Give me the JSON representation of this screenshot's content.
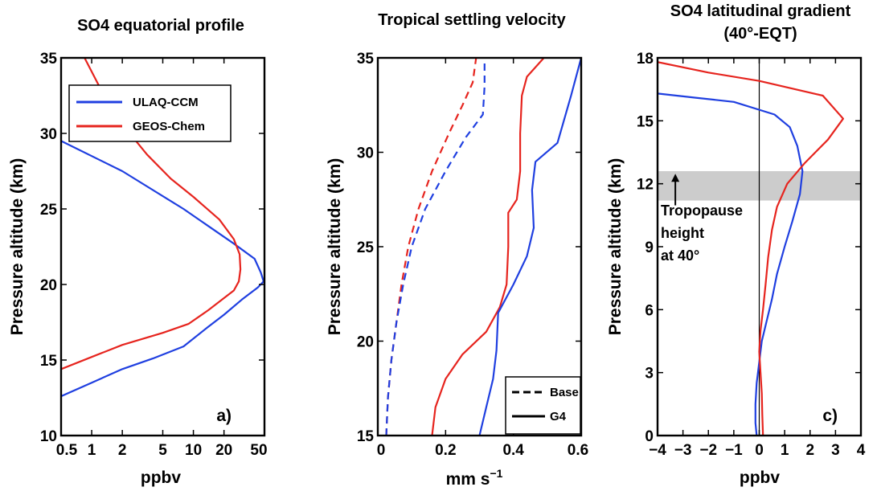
{
  "chart_data": [
    {
      "type": "line",
      "panel_label": "a)",
      "title": "SO4 equatorial profile",
      "xlabel": "ppbv",
      "ylabel": "Pressure altitude (km)",
      "xscale": "log",
      "xlim": [
        0.5,
        50
      ],
      "ylim": [
        10,
        35
      ],
      "xticks": [
        0.5,
        1,
        2,
        5,
        10,
        20,
        50
      ],
      "xtick_labels": [
        "0.5",
        "1",
        "2",
        "5",
        "10",
        "20",
        "50"
      ],
      "yticks": [
        10,
        15,
        20,
        25,
        30,
        35
      ],
      "ytick_labels": [
        "10",
        "15",
        "20",
        "25",
        "30",
        "35"
      ],
      "legend_position": "top-left",
      "series": [
        {
          "name": "ULAQ-CCM",
          "color": "#1f3fe0",
          "style": "solid",
          "points": [
            [
              0.5,
              12.6
            ],
            [
              1,
              13.5
            ],
            [
              2,
              14.4
            ],
            [
              4,
              15.1
            ],
            [
              8,
              15.9
            ],
            [
              14,
              17.2
            ],
            [
              20,
              18.0
            ],
            [
              30,
              19.0
            ],
            [
              43,
              19.8
            ],
            [
              49,
              20.2
            ],
            [
              46,
              20.8
            ],
            [
              40,
              21.7
            ],
            [
              25,
              22.7
            ],
            [
              8,
              25.0
            ],
            [
              2,
              27.5
            ],
            [
              0.5,
              29.5
            ]
          ]
        },
        {
          "name": "GEOS-Chem",
          "color": "#e6241e",
          "style": "solid",
          "points": [
            [
              0.5,
              14.4
            ],
            [
              1,
              15.2
            ],
            [
              2,
              16.0
            ],
            [
              5,
              16.8
            ],
            [
              9,
              17.4
            ],
            [
              14,
              18.3
            ],
            [
              20,
              19.1
            ],
            [
              25,
              19.6
            ],
            [
              28,
              20.2
            ],
            [
              29,
              21.0
            ],
            [
              28.5,
              22.0
            ],
            [
              25,
              23.0
            ],
            [
              18,
              24.3
            ],
            [
              10,
              25.8
            ],
            [
              6,
              27.0
            ],
            [
              3.5,
              28.6
            ],
            [
              2,
              30.6
            ],
            [
              1.3,
              32.6
            ],
            [
              0.85,
              35.0
            ]
          ]
        }
      ]
    },
    {
      "type": "line",
      "title": "Tropical settling velocity",
      "xlabel": "mm s",
      "xlabel_sup": "−1",
      "ylabel": "Pressure altitude (km)",
      "xlim": [
        0,
        0.6
      ],
      "ylim": [
        15,
        35
      ],
      "xticks": [
        0,
        0.2,
        0.4,
        0.6
      ],
      "xtick_labels": [
        "0",
        "0.2",
        "0.4",
        "0.6"
      ],
      "yticks": [
        15,
        20,
        25,
        30,
        35
      ],
      "ytick_labels": [
        "15",
        "20",
        "25",
        "30",
        "35"
      ],
      "legend_position": "bottom-right",
      "legend": [
        {
          "label": "Base",
          "style": "dashed"
        },
        {
          "label": "G4",
          "style": "solid"
        }
      ],
      "series": [
        {
          "color": "#e6241e",
          "style": "dashed",
          "points": [
            [
              0.025,
              15.0
            ],
            [
              0.03,
              17.0
            ],
            [
              0.04,
              19.0
            ],
            [
              0.055,
              21.0
            ],
            [
              0.07,
              23.0
            ],
            [
              0.09,
              25.0
            ],
            [
              0.12,
              27.0
            ],
            [
              0.16,
              29.0
            ],
            [
              0.21,
              31.0
            ],
            [
              0.25,
              32.5
            ],
            [
              0.28,
              33.7
            ],
            [
              0.29,
              35.0
            ]
          ]
        },
        {
          "color": "#1f3fe0",
          "style": "dashed",
          "points": [
            [
              0.025,
              15.0
            ],
            [
              0.03,
              17.0
            ],
            [
              0.04,
              19.0
            ],
            [
              0.055,
              21.0
            ],
            [
              0.075,
              23.0
            ],
            [
              0.1,
              25.0
            ],
            [
              0.14,
              27.0
            ],
            [
              0.2,
              29.0
            ],
            [
              0.26,
              30.8
            ],
            [
              0.31,
              32.0
            ],
            [
              0.315,
              33.5
            ],
            [
              0.315,
              35.0
            ]
          ]
        },
        {
          "color": "#e6241e",
          "style": "solid",
          "points": [
            [
              0.16,
              15.0
            ],
            [
              0.17,
              16.5
            ],
            [
              0.2,
              18.0
            ],
            [
              0.25,
              19.3
            ],
            [
              0.32,
              20.5
            ],
            [
              0.36,
              21.8
            ],
            [
              0.38,
              23.0
            ],
            [
              0.385,
              25.0
            ],
            [
              0.385,
              26.8
            ],
            [
              0.41,
              27.5
            ],
            [
              0.42,
              29.0
            ],
            [
              0.42,
              31.0
            ],
            [
              0.425,
              33.0
            ],
            [
              0.44,
              34.0
            ],
            [
              0.49,
              35.0
            ]
          ]
        },
        {
          "color": "#1f3fe0",
          "style": "solid",
          "points": [
            [
              0.3,
              15.0
            ],
            [
              0.32,
              16.5
            ],
            [
              0.34,
              18.0
            ],
            [
              0.35,
              19.5
            ],
            [
              0.355,
              21.5
            ],
            [
              0.4,
              23.0
            ],
            [
              0.44,
              24.5
            ],
            [
              0.46,
              26.0
            ],
            [
              0.455,
              28.0
            ],
            [
              0.465,
              29.5
            ],
            [
              0.53,
              30.5
            ],
            [
              0.57,
              33.0
            ],
            [
              0.6,
              35.0
            ]
          ]
        }
      ]
    },
    {
      "type": "line",
      "panel_label": "c)",
      "title": "SO4 latitudinal gradient",
      "subtitle": "(40°-EQT)",
      "xlabel": "ppbv",
      "ylabel": "Pressure altitude (km)",
      "xlim": [
        -4,
        4
      ],
      "ylim": [
        0,
        18
      ],
      "xticks": [
        -4,
        -3,
        -2,
        -1,
        0,
        1,
        2,
        3,
        4
      ],
      "xtick_labels": [
        "−4",
        "−3",
        "−2",
        "−1",
        "0",
        "1",
        "2",
        "3",
        "4"
      ],
      "yticks": [
        0,
        3,
        6,
        9,
        12,
        15,
        18
      ],
      "ytick_labels": [
        "0",
        "3",
        "6",
        "9",
        "12",
        "15",
        "18"
      ],
      "zero_line": true,
      "shaded_band": {
        "y": [
          11.2,
          12.6
        ],
        "color": "#cccccc"
      },
      "annotation": {
        "lines": [
          "Tropopause",
          "height",
          "at 40°"
        ],
        "arrow_from": [
          -3.3,
          11.2
        ],
        "arrow_to": [
          -3.3,
          12.4
        ]
      },
      "series": [
        {
          "color": "#1f3fe0",
          "style": "solid",
          "points": [
            [
              -0.1,
              0.0
            ],
            [
              -0.15,
              0.6
            ],
            [
              -0.15,
              1.5
            ],
            [
              -0.1,
              2.5
            ],
            [
              0.0,
              3.5
            ],
            [
              0.1,
              4.5
            ],
            [
              0.3,
              5.5
            ],
            [
              0.5,
              6.5
            ],
            [
              0.7,
              7.7
            ],
            [
              1.0,
              9.0
            ],
            [
              1.3,
              10.2
            ],
            [
              1.6,
              11.5
            ],
            [
              1.7,
              12.6
            ],
            [
              1.5,
              13.8
            ],
            [
              1.2,
              14.7
            ],
            [
              0.6,
              15.3
            ],
            [
              -1.0,
              15.9
            ],
            [
              -2.5,
              16.1
            ],
            [
              -4.0,
              16.3
            ]
          ]
        },
        {
          "color": "#e6241e",
          "style": "solid",
          "points": [
            [
              0.15,
              0.0
            ],
            [
              0.12,
              1.0
            ],
            [
              0.1,
              2.0
            ],
            [
              0.05,
              3.0
            ],
            [
              0.0,
              4.0
            ],
            [
              0.05,
              5.0
            ],
            [
              0.15,
              6.0
            ],
            [
              0.25,
              7.2
            ],
            [
              0.35,
              8.5
            ],
            [
              0.5,
              9.8
            ],
            [
              0.7,
              10.9
            ],
            [
              1.1,
              12.0
            ],
            [
              1.8,
              13.0
            ],
            [
              2.7,
              14.1
            ],
            [
              3.3,
              15.1
            ],
            [
              2.5,
              16.2
            ],
            [
              0.0,
              16.9
            ],
            [
              -2.0,
              17.3
            ],
            [
              -4.0,
              17.8
            ]
          ]
        }
      ]
    }
  ]
}
